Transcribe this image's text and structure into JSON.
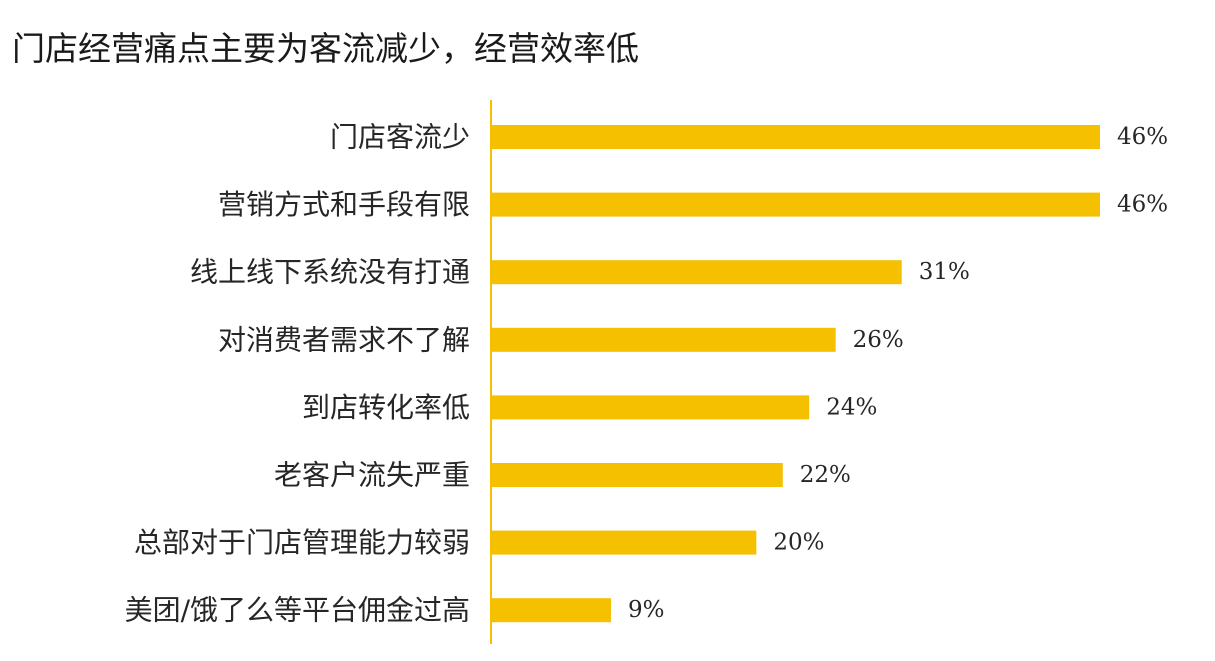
{
  "chart_data": {
    "type": "bar",
    "orientation": "horizontal",
    "title": "门店经营痛点主要为客流减少，经营效率低",
    "categories": [
      "门店客流少",
      "营销方式和手段有限",
      "线上线下系统没有打通",
      "对消费者需求不了解",
      "到店转化率低",
      "老客户流失严重",
      "总部对于门店管理能力较弱",
      "美团/饿了么等平台佣金过高"
    ],
    "values": [
      46,
      46,
      31,
      26,
      24,
      22,
      20,
      9
    ],
    "value_labels": [
      "46%",
      "46%",
      "31%",
      "26%",
      "24%",
      "22%",
      "20%",
      "9%"
    ],
    "unit": "%",
    "xlim": [
      0,
      46
    ],
    "grid": false,
    "legend": "none",
    "colors": {
      "bar": "#F5C000",
      "axis": "#F5C000",
      "text": "#262626"
    }
  }
}
